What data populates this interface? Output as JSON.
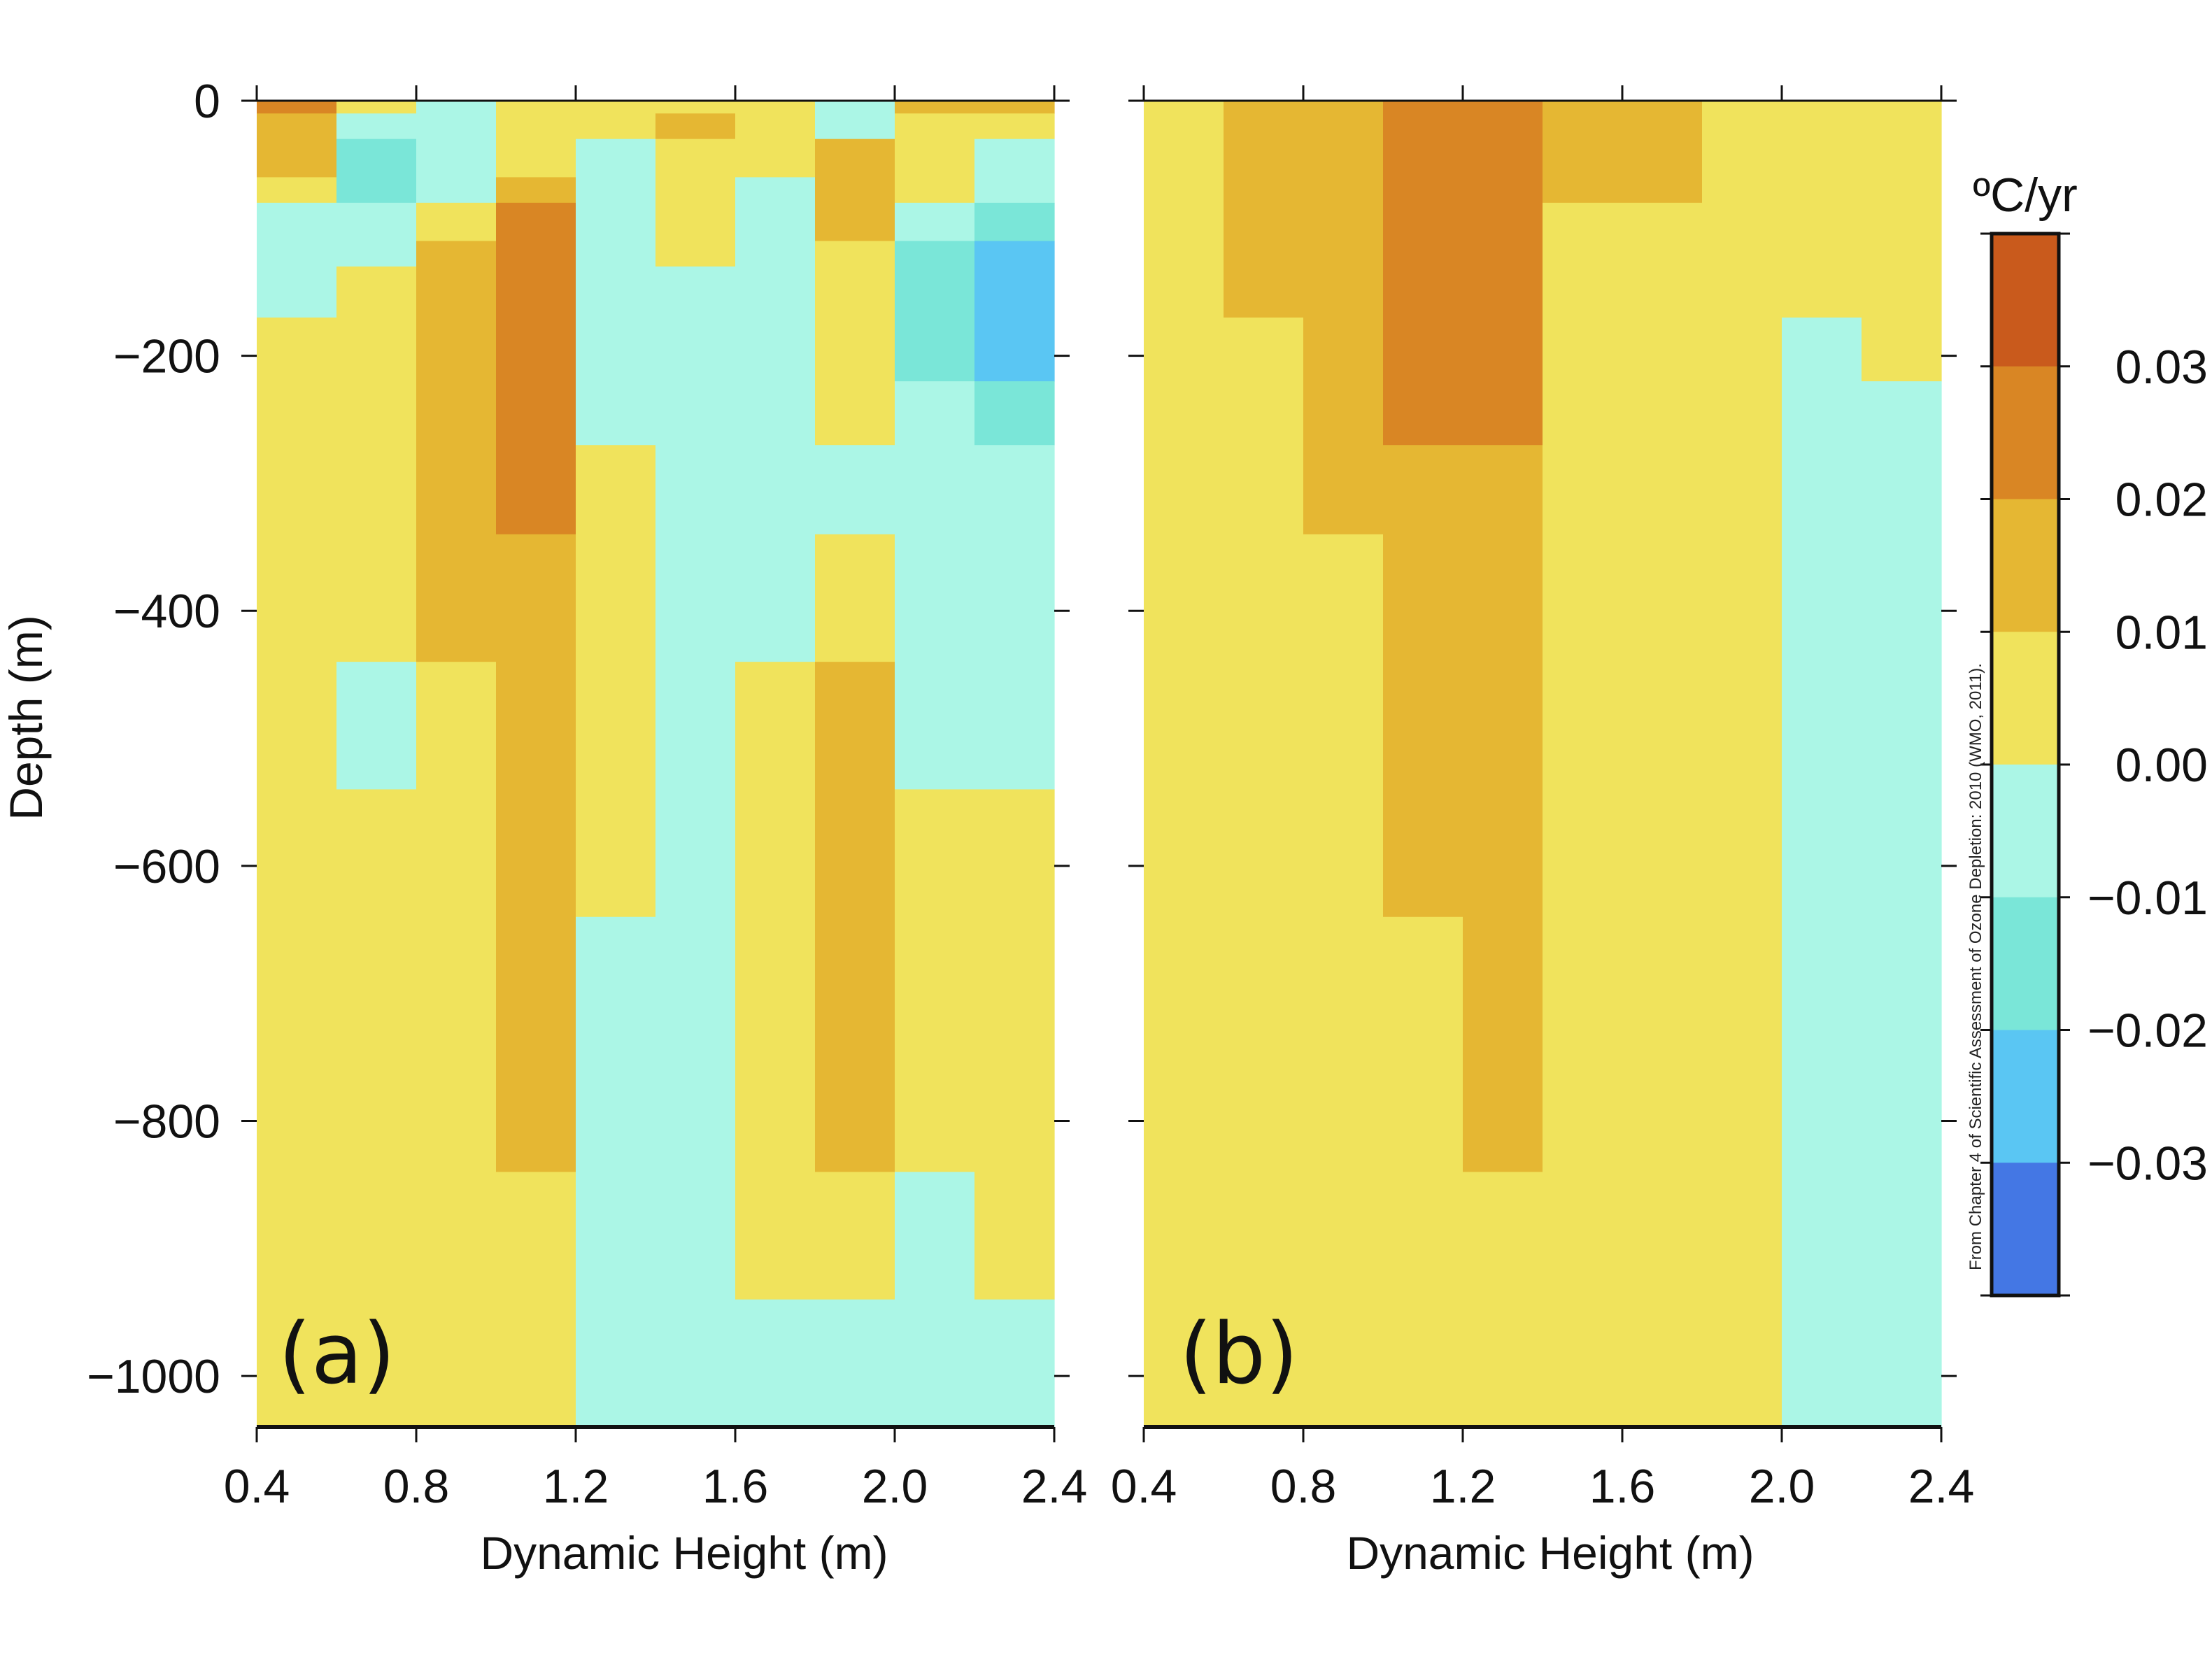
{
  "chart_data": {
    "type": "heatmap",
    "colorbar": {
      "unit_label": "ºC/yr",
      "tick_labels": [
        "0.03",
        "0.02",
        "0.01",
        "0.00",
        "−0.01",
        "−0.02",
        "−0.03"
      ],
      "bins": [
        {
          "from": 0.03,
          "to": 0.04,
          "color": "#c95a1c"
        },
        {
          "from": 0.02,
          "to": 0.03,
          "color": "#d98624"
        },
        {
          "from": 0.01,
          "to": 0.02,
          "color": "#e5b733"
        },
        {
          "from": 0.0,
          "to": 0.01,
          "color": "#f0e35c"
        },
        {
          "from": -0.01,
          "to": 0.0,
          "color": "#abf6e6"
        },
        {
          "from": -0.02,
          "to": -0.01,
          "color": "#7ae6d8"
        },
        {
          "from": -0.03,
          "to": -0.02,
          "color": "#5ac6f3"
        },
        {
          "from": -0.04,
          "to": -0.03,
          "color": "#4477e4"
        }
      ]
    },
    "credit": "From Chapter 4 of Scientific Assessment of Ozone Depletion: 2010 (WMO, 2011).",
    "panels": [
      {
        "label": "(a)",
        "xlabel": "Dynamic Height (m)",
        "ylabel": "Depth (m)",
        "xlim": [
          0.4,
          2.4
        ],
        "ylim": [
          -1040,
          0
        ],
        "x_ticks": [
          0.4,
          0.8,
          1.2,
          1.6,
          2.0,
          2.4
        ],
        "x_tick_labels": [
          "0.4",
          "0.8",
          "1.2",
          "1.6",
          "2.0",
          "2.4"
        ],
        "y_ticks": [
          0,
          -200,
          -400,
          -600,
          -800,
          -1000
        ],
        "y_tick_labels": [
          "0",
          "−200",
          "−400",
          "−600",
          "−800",
          "−1000"
        ],
        "columns": [
          {
            "x": [
              0.4,
              0.6
            ],
            "cells": [
              {
                "depth": [
                  0,
                  -10
                ],
                "value": 0.025
              },
              {
                "depth": [
                  -10,
                  -60
                ],
                "value": 0.015
              },
              {
                "depth": [
                  -60,
                  -80
                ],
                "value": 0.005
              },
              {
                "depth": [
                  -80,
                  -170
                ],
                "value": -0.005
              },
              {
                "depth": [
                  -170,
                  -1040
                ],
                "value": 0.005
              }
            ]
          },
          {
            "x": [
              0.6,
              0.8
            ],
            "cells": [
              {
                "depth": [
                  0,
                  -10
                ],
                "value": 0.005
              },
              {
                "depth": [
                  -10,
                  -30
                ],
                "value": -0.005
              },
              {
                "depth": [
                  -30,
                  -80
                ],
                "value": -0.015
              },
              {
                "depth": [
                  -80,
                  -130
                ],
                "value": -0.005
              },
              {
                "depth": [
                  -130,
                  -440
                ],
                "value": 0.005
              },
              {
                "depth": [
                  -440,
                  -540
                ],
                "value": -0.005
              },
              {
                "depth": [
                  -540,
                  -1040
                ],
                "value": 0.005
              }
            ]
          },
          {
            "x": [
              0.8,
              1.0
            ],
            "cells": [
              {
                "depth": [
                  0,
                  -80
                ],
                "value": -0.005
              },
              {
                "depth": [
                  -80,
                  -110
                ],
                "value": 0.005
              },
              {
                "depth": [
                  -110,
                  -440
                ],
                "value": 0.015
              },
              {
                "depth": [
                  -440,
                  -1040
                ],
                "value": 0.005
              }
            ]
          },
          {
            "x": [
              1.0,
              1.2
            ],
            "cells": [
              {
                "depth": [
                  0,
                  -60
                ],
                "value": 0.005
              },
              {
                "depth": [
                  -60,
                  -80
                ],
                "value": 0.015
              },
              {
                "depth": [
                  -80,
                  -340
                ],
                "value": 0.025
              },
              {
                "depth": [
                  -340,
                  -840
                ],
                "value": 0.015
              },
              {
                "depth": [
                  -840,
                  -1040
                ],
                "value": 0.005
              }
            ]
          },
          {
            "x": [
              1.2,
              1.4
            ],
            "cells": [
              {
                "depth": [
                  0,
                  -30
                ],
                "value": 0.005
              },
              {
                "depth": [
                  -30,
                  -270
                ],
                "value": -0.005
              },
              {
                "depth": [
                  -270,
                  -640
                ],
                "value": 0.005
              },
              {
                "depth": [
                  -640,
                  -1040
                ],
                "value": -0.005
              }
            ]
          },
          {
            "x": [
              1.4,
              1.6
            ],
            "cells": [
              {
                "depth": [
                  0,
                  -10
                ],
                "value": 0.005
              },
              {
                "depth": [
                  -10,
                  -30
                ],
                "value": 0.015
              },
              {
                "depth": [
                  -30,
                  -130
                ],
                "value": 0.005
              },
              {
                "depth": [
                  -130,
                  -1040
                ],
                "value": -0.005
              }
            ]
          },
          {
            "x": [
              1.6,
              1.8
            ],
            "cells": [
              {
                "depth": [
                  0,
                  -60
                ],
                "value": 0.005
              },
              {
                "depth": [
                  -60,
                  -440
                ],
                "value": -0.005
              },
              {
                "depth": [
                  -440,
                  -940
                ],
                "value": 0.005
              },
              {
                "depth": [
                  -940,
                  -1040
                ],
                "value": -0.005
              }
            ]
          },
          {
            "x": [
              1.8,
              2.0
            ],
            "cells": [
              {
                "depth": [
                  0,
                  -30
                ],
                "value": -0.005
              },
              {
                "depth": [
                  -30,
                  -110
                ],
                "value": 0.015
              },
              {
                "depth": [
                  -110,
                  -270
                ],
                "value": 0.005
              },
              {
                "depth": [
                  -270,
                  -340
                ],
                "value": -0.005
              },
              {
                "depth": [
                  -340,
                  -440
                ],
                "value": 0.005
              },
              {
                "depth": [
                  -440,
                  -840
                ],
                "value": 0.015
              },
              {
                "depth": [
                  -840,
                  -940
                ],
                "value": 0.005
              },
              {
                "depth": [
                  -940,
                  -1040
                ],
                "value": -0.005
              }
            ]
          },
          {
            "x": [
              2.0,
              2.2
            ],
            "cells": [
              {
                "depth": [
                  0,
                  -10
                ],
                "value": 0.015
              },
              {
                "depth": [
                  -10,
                  -80
                ],
                "value": 0.005
              },
              {
                "depth": [
                  -80,
                  -110
                ],
                "value": -0.005
              },
              {
                "depth": [
                  -110,
                  -220
                ],
                "value": -0.015
              },
              {
                "depth": [
                  -220,
                  -540
                ],
                "value": -0.005
              },
              {
                "depth": [
                  -540,
                  -840
                ],
                "value": 0.005
              },
              {
                "depth": [
                  -840,
                  -1040
                ],
                "value": -0.005
              }
            ]
          },
          {
            "x": [
              2.2,
              2.4
            ],
            "cells": [
              {
                "depth": [
                  0,
                  -10
                ],
                "value": 0.015
              },
              {
                "depth": [
                  -10,
                  -30
                ],
                "value": 0.005
              },
              {
                "depth": [
                  -30,
                  -80
                ],
                "value": -0.005
              },
              {
                "depth": [
                  -80,
                  -110
                ],
                "value": -0.015
              },
              {
                "depth": [
                  -110,
                  -220
                ],
                "value": -0.025
              },
              {
                "depth": [
                  -220,
                  -270
                ],
                "value": -0.015
              },
              {
                "depth": [
                  -270,
                  -540
                ],
                "value": -0.005
              },
              {
                "depth": [
                  -540,
                  -940
                ],
                "value": 0.005
              },
              {
                "depth": [
                  -940,
                  -1040
                ],
                "value": -0.005
              }
            ]
          }
        ]
      },
      {
        "label": "(b)",
        "xlabel": "Dynamic Height (m)",
        "ylabel": "",
        "xlim": [
          0.4,
          2.4
        ],
        "ylim": [
          -1040,
          0
        ],
        "x_ticks": [
          0.4,
          0.8,
          1.2,
          1.6,
          2.0,
          2.4
        ],
        "x_tick_labels": [
          "0.4",
          "0.8",
          "1.2",
          "1.6",
          "2.0",
          "2.4"
        ],
        "y_ticks": [
          0,
          -200,
          -400,
          -600,
          -800,
          -1000
        ],
        "y_tick_labels": [],
        "columns": [
          {
            "x": [
              0.4,
              0.6
            ],
            "cells": [
              {
                "depth": [
                  0,
                  -1040
                ],
                "value": 0.005
              }
            ]
          },
          {
            "x": [
              0.6,
              0.8
            ],
            "cells": [
              {
                "depth": [
                  0,
                  -170
                ],
                "value": 0.015
              },
              {
                "depth": [
                  -170,
                  -1040
                ],
                "value": 0.005
              }
            ]
          },
          {
            "x": [
              0.8,
              1.0
            ],
            "cells": [
              {
                "depth": [
                  0,
                  -340
                ],
                "value": 0.015
              },
              {
                "depth": [
                  -340,
                  -1040
                ],
                "value": 0.005
              }
            ]
          },
          {
            "x": [
              1.0,
              1.2
            ],
            "cells": [
              {
                "depth": [
                  0,
                  -270
                ],
                "value": 0.025
              },
              {
                "depth": [
                  -270,
                  -640
                ],
                "value": 0.015
              },
              {
                "depth": [
                  -640,
                  -1040
                ],
                "value": 0.005
              }
            ]
          },
          {
            "x": [
              1.2,
              1.4
            ],
            "cells": [
              {
                "depth": [
                  0,
                  -270
                ],
                "value": 0.025
              },
              {
                "depth": [
                  -270,
                  -840
                ],
                "value": 0.015
              },
              {
                "depth": [
                  -840,
                  -1040
                ],
                "value": 0.005
              }
            ]
          },
          {
            "x": [
              1.4,
              1.6
            ],
            "cells": [
              {
                "depth": [
                  0,
                  -80
                ],
                "value": 0.015
              },
              {
                "depth": [
                  -80,
                  -1040
                ],
                "value": 0.005
              }
            ]
          },
          {
            "x": [
              1.6,
              1.8
            ],
            "cells": [
              {
                "depth": [
                  0,
                  -80
                ],
                "value": 0.015
              },
              {
                "depth": [
                  -80,
                  -1040
                ],
                "value": 0.005
              }
            ]
          },
          {
            "x": [
              1.8,
              2.0
            ],
            "cells": [
              {
                "depth": [
                  0,
                  -1040
                ],
                "value": 0.005
              }
            ]
          },
          {
            "x": [
              2.0,
              2.2
            ],
            "cells": [
              {
                "depth": [
                  0,
                  -170
                ],
                "value": 0.005
              },
              {
                "depth": [
                  -170,
                  -1040
                ],
                "value": -0.005
              }
            ]
          },
          {
            "x": [
              2.2,
              2.4
            ],
            "cells": [
              {
                "depth": [
                  0,
                  -220
                ],
                "value": 0.005
              },
              {
                "depth": [
                  -220,
                  -1040
                ],
                "value": -0.005
              }
            ]
          }
        ]
      }
    ]
  }
}
